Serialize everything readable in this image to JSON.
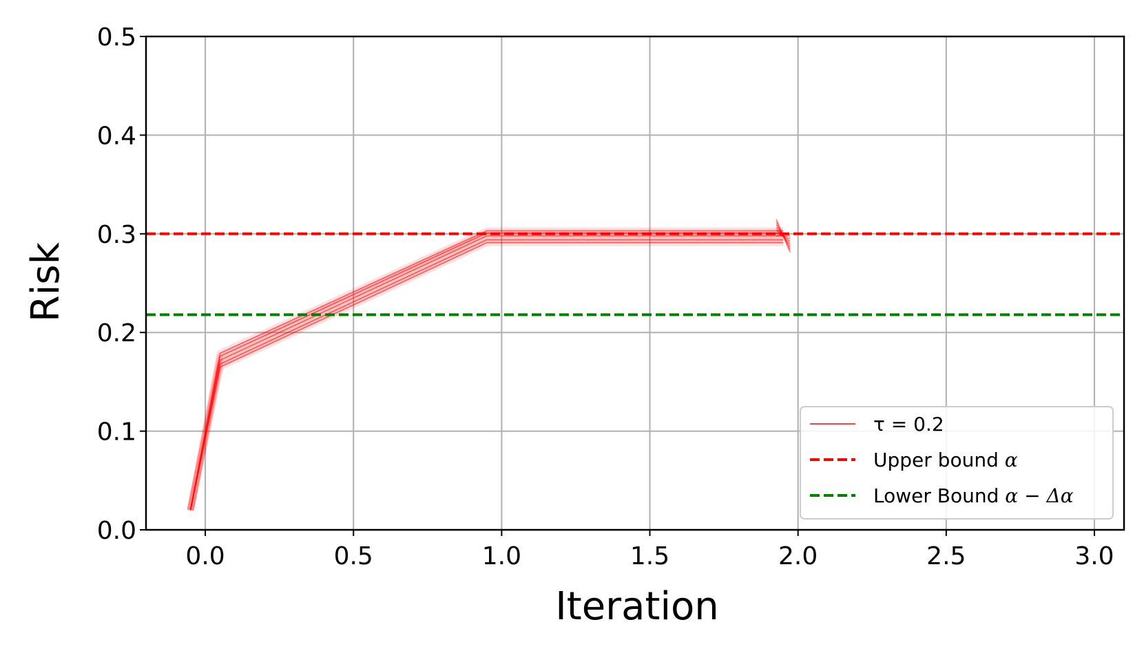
{
  "chart_data": {
    "type": "line",
    "xlabel": "Iteration",
    "ylabel": "Risk",
    "xlim": [
      -0.2,
      3.1
    ],
    "ylim": [
      0,
      0.5
    ],
    "xticks": [
      "0.0",
      "0.5",
      "1.0",
      "1.5",
      "2.0",
      "2.5",
      "3.0"
    ],
    "xtick_values": [
      0,
      0.5,
      1,
      1.5,
      2,
      2.5,
      3
    ],
    "yticks": [
      "0.0",
      "0.1",
      "0.2",
      "0.3",
      "0.4",
      "0.5"
    ],
    "ytick_values": [
      0,
      0.1,
      0.2,
      0.3,
      0.4,
      0.5
    ],
    "grid": true,
    "legend_position": "lower-right",
    "series": [
      {
        "name": "τ = 0.2",
        "style": "solid",
        "color": "#ff0000",
        "runs": [
          {
            "x": [
              -0.05,
              0.05,
              0.95,
              1.95
            ],
            "y": [
              0.02,
              0.172,
              0.298,
              0.298
            ]
          },
          {
            "x": [
              -0.05,
              0.05,
              0.95,
              1.95
            ],
            "y": [
              0.02,
              0.168,
              0.294,
              0.294
            ]
          },
          {
            "x": [
              -0.05,
              0.05,
              0.95,
              1.95
            ],
            "y": [
              0.02,
              0.176,
              0.301,
              0.301
            ]
          },
          {
            "x": [
              -0.05,
              0.05,
              0.95,
              1.95
            ],
            "y": [
              0.02,
              0.165,
              0.291,
              0.291
            ]
          },
          {
            "x": [
              -0.05,
              0.05,
              0.95,
              1.95
            ],
            "y": [
              0.02,
              0.179,
              0.303,
              0.303
            ]
          }
        ]
      },
      {
        "name": "Upper bound α",
        "style": "dashed",
        "color": "#ff0000",
        "y": 0.3
      },
      {
        "name": "Lower Bound α − Δα",
        "style": "dashed",
        "color": "#008000",
        "y": 0.218
      }
    ]
  },
  "legend": {
    "tau_label": "τ = 0.2",
    "upper_label": "Upper bound ",
    "upper_math": "α",
    "lower_label": "Lower Bound ",
    "lower_math": "α − Δα"
  }
}
